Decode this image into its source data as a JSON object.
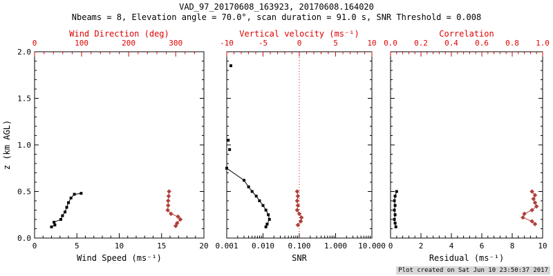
{
  "header": {
    "title": "VAD_97_20170608_163923, 20170608.164020",
    "subtitle": "Nbeams = 8, Elevation angle = 70.0°, scan duration = 91.0 s, SNR Threshold = 0.008"
  },
  "footer": {
    "created": "Plot created on Sat Jun 10 23:50:37 2017"
  },
  "colors": {
    "axis_red": "#dd0000",
    "series_red": "#b04038",
    "black": "#000000"
  },
  "chart_data": [
    {
      "type": "line",
      "name": "wind",
      "ylabel": "z (km AGL)",
      "ylim": [
        0,
        2
      ],
      "yticks": {
        "vals": [
          0,
          0.5,
          1,
          1.5,
          2
        ],
        "labels": [
          "0.0",
          "0.5",
          "1.0",
          "1.5",
          "2.0"
        ]
      },
      "x_bottom": {
        "label": "Wind Speed (ms⁻¹)",
        "scale": "linear",
        "lim": [
          0,
          20
        ],
        "tick_vals": [
          0,
          5,
          10,
          15,
          20
        ],
        "tick_labels": [
          "0",
          "5",
          "10",
          "15",
          "20"
        ]
      },
      "x_top": {
        "label": "Wind Direction (deg)",
        "scale": "linear",
        "lim": [
          0,
          360
        ],
        "tick_vals": [
          0,
          100,
          200,
          300
        ],
        "tick_labels": [
          "0",
          "100",
          "200",
          "300"
        ],
        "color": "red"
      },
      "series": [
        {
          "name": "wind-speed",
          "axis": "bottom",
          "color": "black",
          "marker": "square",
          "points": [
            [
              2.0,
              0.12
            ],
            [
              2.4,
              0.14
            ],
            [
              2.3,
              0.17
            ],
            [
              3.1,
              0.2
            ],
            [
              3.3,
              0.24
            ],
            [
              3.6,
              0.28
            ],
            [
              3.8,
              0.33
            ],
            [
              4.0,
              0.38
            ],
            [
              4.3,
              0.43
            ],
            [
              4.7,
              0.47
            ],
            [
              5.5,
              0.48
            ]
          ]
        },
        {
          "name": "wind-direction",
          "axis": "top",
          "color": "red",
          "marker": "diamond",
          "points": [
            [
              286,
              0.5
            ],
            [
              285,
              0.45
            ],
            [
              284,
              0.4
            ],
            [
              284,
              0.35
            ],
            [
              283,
              0.3
            ],
            [
              290,
              0.26
            ],
            [
              305,
              0.23
            ],
            [
              310,
              0.2
            ],
            [
              303,
              0.16
            ],
            [
              300,
              0.13
            ]
          ]
        }
      ]
    },
    {
      "type": "line",
      "name": "snr",
      "ylim": [
        0,
        2
      ],
      "yticks": {
        "vals": [
          0,
          0.5,
          1,
          1.5,
          2
        ]
      },
      "x_bottom": {
        "label": "SNR",
        "scale": "log",
        "lim": [
          0.001,
          10
        ],
        "tick_vals": [
          0.001,
          0.01,
          0.1,
          1,
          10
        ],
        "tick_labels": [
          "0.001",
          "0.010",
          "0.100",
          "1.000",
          "10.000"
        ]
      },
      "x_top": {
        "label": "Vertical velocity (ms⁻¹)",
        "scale": "linear",
        "lim": [
          -10,
          10
        ],
        "tick_vals": [
          -10,
          -5,
          0,
          5,
          10
        ],
        "tick_labels": [
          "-10",
          "-5",
          "0",
          "5",
          "10"
        ],
        "color": "red"
      },
      "refline": {
        "axis": "top",
        "value": 0,
        "color": "red",
        "style": "dotted"
      },
      "series": [
        {
          "name": "snr-isolated",
          "axis": "bottom",
          "color": "black",
          "marker": "square",
          "line": false,
          "points": [
            [
              0.0013,
              1.85
            ],
            [
              0.0011,
              1.05
            ],
            [
              0.0012,
              0.95
            ]
          ]
        },
        {
          "name": "snr-profile",
          "axis": "bottom",
          "color": "black",
          "marker": "square",
          "points": [
            [
              0.001,
              0.75
            ],
            [
              0.003,
              0.62
            ],
            [
              0.004,
              0.55
            ],
            [
              0.005,
              0.5
            ],
            [
              0.0065,
              0.45
            ],
            [
              0.008,
              0.4
            ],
            [
              0.01,
              0.35
            ],
            [
              0.012,
              0.3
            ],
            [
              0.014,
              0.25
            ],
            [
              0.015,
              0.2
            ],
            [
              0.013,
              0.15
            ],
            [
              0.012,
              0.12
            ]
          ]
        },
        {
          "name": "vertical-velocity",
          "axis": "top",
          "color": "red",
          "marker": "diamond",
          "points": [
            [
              -0.3,
              0.5
            ],
            [
              -0.2,
              0.45
            ],
            [
              -0.3,
              0.4
            ],
            [
              -0.2,
              0.35
            ],
            [
              -0.3,
              0.3
            ],
            [
              0.0,
              0.26
            ],
            [
              0.3,
              0.22
            ],
            [
              0.2,
              0.18
            ],
            [
              -0.2,
              0.14
            ]
          ]
        }
      ]
    },
    {
      "type": "line",
      "name": "residual",
      "ylim": [
        0,
        2
      ],
      "yticks": {
        "vals": [
          0,
          0.5,
          1,
          1.5,
          2
        ]
      },
      "x_bottom": {
        "label": "Residual (ms⁻¹)",
        "scale": "linear",
        "lim": [
          0,
          10
        ],
        "tick_vals": [
          0,
          2,
          4,
          6,
          8,
          10
        ],
        "tick_labels": [
          "0",
          "2",
          "4",
          "6",
          "8",
          "10"
        ]
      },
      "x_top": {
        "label": "Correlation",
        "scale": "linear",
        "lim": [
          0,
          1
        ],
        "tick_vals": [
          0,
          0.2,
          0.4,
          0.6,
          0.8,
          1
        ],
        "tick_labels": [
          "0.0",
          "0.2",
          "0.4",
          "0.6",
          "0.8",
          "1.0"
        ],
        "color": "red"
      },
      "series": [
        {
          "name": "residual",
          "axis": "bottom",
          "color": "black",
          "marker": "square",
          "points": [
            [
              0.4,
              0.5
            ],
            [
              0.3,
              0.45
            ],
            [
              0.25,
              0.4
            ],
            [
              0.3,
              0.35
            ],
            [
              0.25,
              0.3
            ],
            [
              0.3,
              0.25
            ],
            [
              0.25,
              0.2
            ],
            [
              0.3,
              0.16
            ],
            [
              0.35,
              0.12
            ]
          ]
        },
        {
          "name": "correlation",
          "axis": "top",
          "color": "red",
          "marker": "diamond",
          "points": [
            [
              0.93,
              0.5
            ],
            [
              0.95,
              0.46
            ],
            [
              0.94,
              0.42
            ],
            [
              0.95,
              0.38
            ],
            [
              0.96,
              0.34
            ],
            [
              0.93,
              0.3
            ],
            [
              0.88,
              0.26
            ],
            [
              0.87,
              0.22
            ],
            [
              0.93,
              0.18
            ],
            [
              0.95,
              0.15
            ]
          ]
        }
      ]
    }
  ]
}
